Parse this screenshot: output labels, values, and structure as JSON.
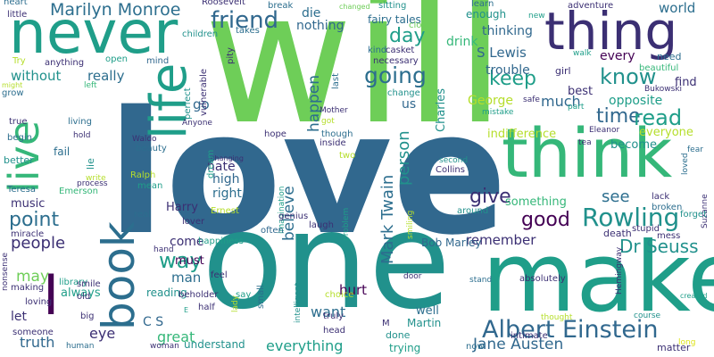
{
  "background": "#ffffff",
  "colors": {
    "purple": "#440154",
    "indigo": "#3b2f73",
    "blue": "#31688e",
    "steel": "#2c6e8e",
    "teal": "#21918c",
    "aqua": "#1f9e89",
    "green": "#35b779",
    "lime": "#6ece58",
    "yellowgreen": "#b5de2b",
    "yellow": "#dde318"
  },
  "words": [
    {
      "text": "love"
    },
    {
      "text": "will"
    },
    {
      "text": "one"
    },
    {
      "text": "make"
    },
    {
      "text": "never"
    },
    {
      "text": "thing"
    },
    {
      "text": "think"
    },
    {
      "text": "life"
    },
    {
      "text": "live"
    },
    {
      "text": "book"
    },
    {
      "text": "I"
    },
    {
      "text": "Albert Einstein"
    },
    {
      "text": "friend"
    },
    {
      "text": "Marilyn Monroe"
    },
    {
      "text": "Rowling"
    },
    {
      "text": "going"
    },
    {
      "text": "know"
    },
    {
      "text": "keep"
    },
    {
      "text": "time"
    },
    {
      "text": "read"
    },
    {
      "text": "way"
    },
    {
      "text": "day"
    },
    {
      "text": "good"
    },
    {
      "text": "give"
    },
    {
      "text": "people"
    },
    {
      "text": "point"
    },
    {
      "text": "Mark Twain"
    },
    {
      "text": "person"
    },
    {
      "text": "Dr Seuss"
    },
    {
      "text": "see"
    },
    {
      "text": "Jane Austen"
    },
    {
      "text": "S Lewis"
    },
    {
      "text": "world"
    },
    {
      "text": "much"
    },
    {
      "text": "everything"
    },
    {
      "text": "believe"
    },
    {
      "text": "happen"
    },
    {
      "text": "truth"
    },
    {
      "text": "eye"
    },
    {
      "text": "great"
    },
    {
      "text": "want"
    },
    {
      "text": "hurt"
    },
    {
      "text": "remember"
    },
    {
      "text": "without"
    },
    {
      "text": "really"
    },
    {
      "text": "nothing"
    },
    {
      "text": "die"
    },
    {
      "text": "thinking"
    },
    {
      "text": "drink"
    },
    {
      "text": "trouble"
    },
    {
      "text": "George"
    },
    {
      "text": "fairy tales"
    },
    {
      "text": "every"
    },
    {
      "text": "enough"
    },
    {
      "text": "opposite"
    },
    {
      "text": "may"
    },
    {
      "text": "music"
    },
    {
      "text": "something"
    },
    {
      "text": "indifference"
    },
    {
      "text": "everyone"
    },
    {
      "text": "become"
    },
    {
      "text": "find"
    },
    {
      "text": "best"
    },
    {
      "text": "us"
    },
    {
      "text": "go"
    },
    {
      "text": "Charles"
    },
    {
      "text": "Bob Marley"
    },
    {
      "text": "C S"
    },
    {
      "text": "man"
    },
    {
      "text": "must"
    },
    {
      "text": "come"
    },
    {
      "text": "hate"
    },
    {
      "text": "high"
    },
    {
      "text": "right"
    },
    {
      "text": "Harry"
    },
    {
      "text": "let"
    },
    {
      "text": "always"
    },
    {
      "text": "reading"
    },
    {
      "text": "understand"
    },
    {
      "text": "well"
    },
    {
      "text": "Martin"
    },
    {
      "text": "done"
    },
    {
      "text": "trying"
    },
    {
      "text": "matter"
    },
    {
      "text": "lie"
    },
    {
      "text": "fail"
    },
    {
      "text": "Roosevelt"
    },
    {
      "text": "break"
    },
    {
      "text": "sitting"
    },
    {
      "text": "learn"
    },
    {
      "text": "adventure"
    },
    {
      "text": "changed"
    },
    {
      "text": "new"
    },
    {
      "text": "close"
    },
    {
      "text": "children"
    },
    {
      "text": "takes"
    },
    {
      "text": "open"
    },
    {
      "text": "pity"
    },
    {
      "text": "vulnerable"
    },
    {
      "text": "kind"
    },
    {
      "text": "casket"
    },
    {
      "text": "necessary"
    },
    {
      "text": "need"
    },
    {
      "text": "walk"
    },
    {
      "text": "girl"
    },
    {
      "text": "beautiful"
    },
    {
      "text": "mind"
    },
    {
      "text": "last"
    },
    {
      "text": "change"
    },
    {
      "text": "Bukowski"
    },
    {
      "text": "safe"
    },
    {
      "text": "part"
    },
    {
      "text": "mistake"
    },
    {
      "text": "Eleanor"
    },
    {
      "text": "tea"
    },
    {
      "text": "fear"
    },
    {
      "text": "Mother"
    },
    {
      "text": "got"
    },
    {
      "text": "perfect"
    },
    {
      "text": "Anyone"
    },
    {
      "text": "hope"
    },
    {
      "text": "inside"
    },
    {
      "text": "though"
    },
    {
      "text": "two"
    },
    {
      "text": "second"
    },
    {
      "text": "Collins"
    },
    {
      "text": "loved"
    },
    {
      "text": "Suzanne"
    },
    {
      "text": "Waldo"
    },
    {
      "text": "beauty"
    },
    {
      "text": "changing"
    },
    {
      "text": "dream"
    },
    {
      "text": "Ralph"
    },
    {
      "text": "mean"
    },
    {
      "text": "Emerson"
    },
    {
      "text": "Teresa"
    },
    {
      "text": "write"
    },
    {
      "text": "process"
    },
    {
      "text": "better"
    },
    {
      "text": "begin"
    },
    {
      "text": "true"
    },
    {
      "text": "living"
    },
    {
      "text": "hold"
    },
    {
      "text": "little"
    },
    {
      "text": "heart"
    },
    {
      "text": "Try"
    },
    {
      "text": "grow"
    },
    {
      "text": "might"
    },
    {
      "text": "left"
    },
    {
      "text": "anything"
    },
    {
      "text": "real"
    },
    {
      "text": "Ernest"
    },
    {
      "text": "imagination"
    },
    {
      "text": "lack"
    },
    {
      "text": "broken"
    },
    {
      "text": "forget"
    },
    {
      "text": "stupid"
    },
    {
      "text": "mess"
    },
    {
      "text": "death"
    },
    {
      "text": "genius"
    },
    {
      "text": "laugh"
    },
    {
      "text": "problem"
    },
    {
      "text": "smiling"
    },
    {
      "text": "around"
    },
    {
      "text": "often"
    },
    {
      "text": "lover"
    },
    {
      "text": "happiness"
    },
    {
      "text": "miracle"
    },
    {
      "text": "nonsense"
    },
    {
      "text": "making"
    },
    {
      "text": "library"
    },
    {
      "text": "smile"
    },
    {
      "text": "loving"
    },
    {
      "text": "old"
    },
    {
      "text": "big"
    },
    {
      "text": "someone"
    },
    {
      "text": "human"
    },
    {
      "text": "woman"
    },
    {
      "text": "say"
    },
    {
      "text": "lady"
    },
    {
      "text": "small"
    },
    {
      "text": "intelligent"
    },
    {
      "text": "choice"
    },
    {
      "text": "truly"
    },
    {
      "text": "head"
    },
    {
      "text": "door"
    },
    {
      "text": "stand"
    },
    {
      "text": "absolutely"
    },
    {
      "text": "Hemingway"
    },
    {
      "text": "intimate"
    },
    {
      "text": "now"
    },
    {
      "text": "thought"
    },
    {
      "text": "course"
    },
    {
      "text": "long"
    },
    {
      "text": "created"
    },
    {
      "text": "hand"
    },
    {
      "text": "half"
    },
    {
      "text": "beholder"
    },
    {
      "text": "feel"
    },
    {
      "text": "E"
    },
    {
      "text": "M"
    }
  ]
}
